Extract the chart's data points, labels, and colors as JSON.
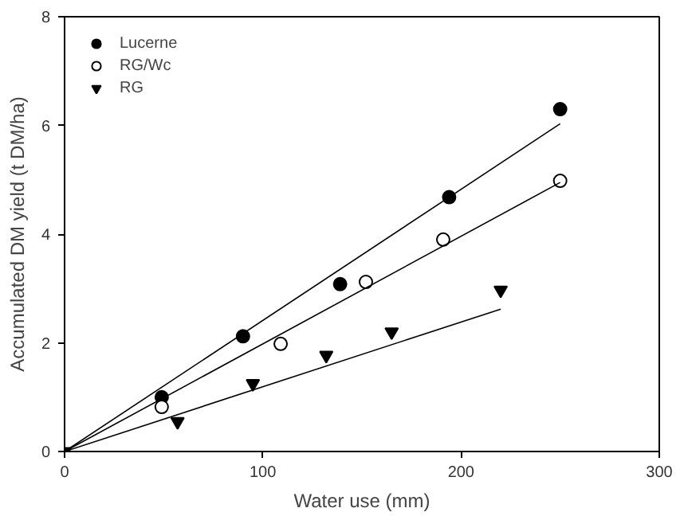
{
  "chart_data": {
    "type": "scatter",
    "xlabel": "Water use (mm)",
    "ylabel": "Accumulated DM yield (t DM/ha)",
    "xlim": [
      0,
      300
    ],
    "xticks": [
      0,
      100,
      200,
      300
    ],
    "ylim": [
      0,
      8
    ],
    "yticks": [
      0,
      2,
      4,
      6,
      8
    ],
    "grid": false,
    "legend": "top left",
    "series": [
      {
        "name": "Lucerne",
        "color": "#000000",
        "marker": "circle",
        "x": [
          49,
          90,
          139,
          194,
          250
        ],
        "values": [
          1.0,
          2.12,
          3.08,
          4.68,
          6.3
        ]
      },
      {
        "name": "RG/Wc",
        "color": "#ffffff",
        "marker": "circle",
        "x": [
          49,
          109,
          152,
          191,
          250
        ],
        "values": [
          0.82,
          1.98,
          3.12,
          3.9,
          4.98
        ]
      },
      {
        "name": "RG",
        "color": "#000000",
        "marker": "triangle",
        "x": [
          0,
          57,
          95,
          132,
          165,
          220
        ],
        "values": [
          0,
          0.55,
          1.25,
          1.77,
          2.2,
          2.97
        ]
      },
      {
        "type": "line",
        "color": "#000000",
        "marker": "none",
        "x": [
          0,
          250
        ],
        "values": [
          0,
          6.03
        ]
      },
      {
        "type": "line",
        "color": "#000000",
        "marker": "none",
        "x": [
          0,
          250
        ],
        "values": [
          0,
          4.95
        ]
      },
      {
        "type": "line",
        "color": "#000000",
        "marker": "none",
        "x": [
          0,
          220
        ],
        "values": [
          0,
          2.62
        ]
      }
    ]
  }
}
